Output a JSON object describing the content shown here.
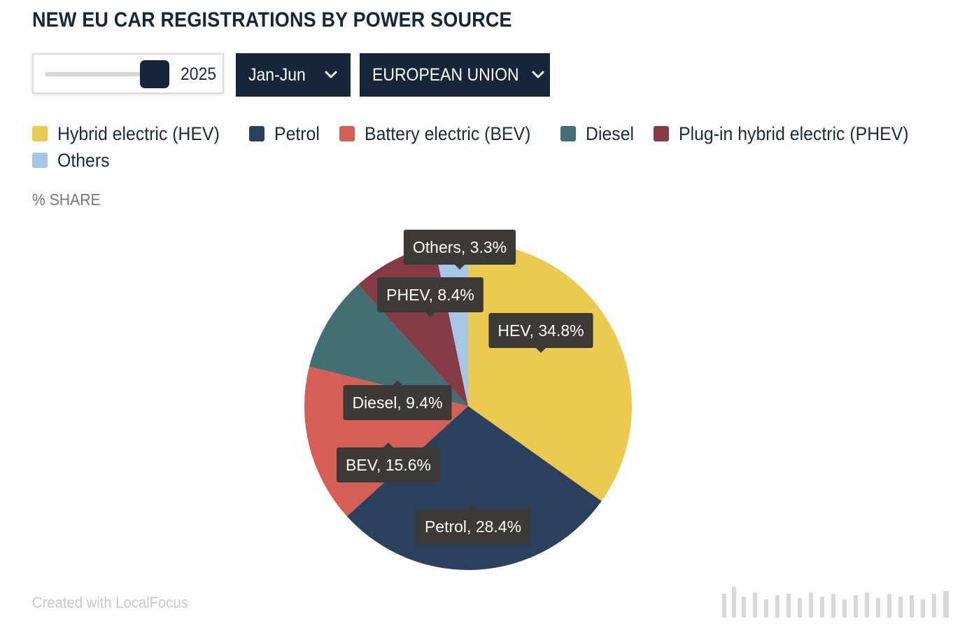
{
  "title": "NEW EU CAR REGISTRATIONS BY POWER SOURCE",
  "controls": {
    "year_value": "2025",
    "period_selected": "Jan-Jun",
    "region_selected": "EUROPEAN UNION"
  },
  "axis_label": "% SHARE",
  "credit": "Created with LocalFocus",
  "colors": {
    "hev": "#ecc94f",
    "petrol": "#2a405d",
    "bev": "#d65f55",
    "diesel": "#426f73",
    "phev": "#843b44",
    "others": "#a6c6e6",
    "tooltip_bg": "#3c3a37",
    "control_bg": "#15263a"
  },
  "chart_data": {
    "type": "pie",
    "title": "NEW EU CAR REGISTRATIONS BY POWER SOURCE",
    "unit": "% SHARE",
    "legend": [
      "Hybrid electric (HEV)",
      "Petrol",
      "Battery electric (BEV)",
      "Diesel",
      "Plug-in hybrid electric (PHEV)",
      "Others"
    ],
    "slices": [
      {
        "key": "hev",
        "legend": "Hybrid electric (HEV)",
        "label": "HEV, 34.8%",
        "value": 34.8
      },
      {
        "key": "petrol",
        "legend": "Petrol",
        "label": "Petrol, 28.4%",
        "value": 28.4
      },
      {
        "key": "bev",
        "legend": "Battery electric (BEV)",
        "label": "BEV, 15.6%",
        "value": 15.6
      },
      {
        "key": "diesel",
        "legend": "Diesel",
        "label": "Diesel, 9.4%",
        "value": 9.4
      },
      {
        "key": "phev",
        "legend": "Plug-in hybrid electric (PHEV)",
        "label": "PHEV, 8.4%",
        "value": 8.4
      },
      {
        "key": "others",
        "legend": "Others",
        "label": "Others, 3.3%",
        "value": 3.3
      }
    ]
  }
}
